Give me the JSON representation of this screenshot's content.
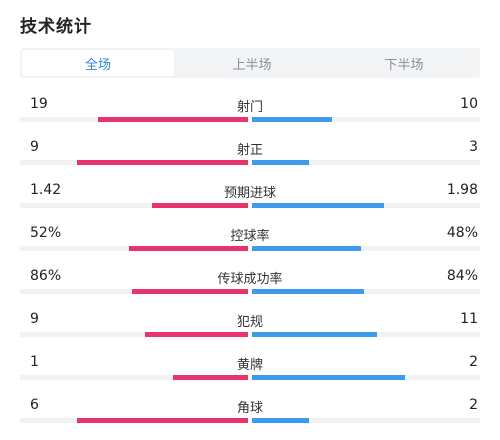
{
  "title": "技术统计",
  "tabs": [
    {
      "label": "全场",
      "active": true
    },
    {
      "label": "上半场",
      "active": false
    },
    {
      "label": "下半场",
      "active": false
    }
  ],
  "colors": {
    "home": "#e8336d",
    "away": "#3d9bec",
    "accent": "#2e86de"
  },
  "stats": [
    {
      "label": "射门",
      "home": "19",
      "away": "10",
      "home_fill": 0.66,
      "away_fill": 0.35
    },
    {
      "label": "射正",
      "home": "9",
      "away": "3",
      "home_fill": 0.75,
      "away_fill": 0.25
    },
    {
      "label": "预期进球",
      "home": "1.42",
      "away": "1.98",
      "home_fill": 0.42,
      "away_fill": 0.58
    },
    {
      "label": "控球率",
      "home": "52%",
      "away": "48%",
      "home_fill": 0.52,
      "away_fill": 0.48
    },
    {
      "label": "传球成功率",
      "home": "86%",
      "away": "84%",
      "home_fill": 0.51,
      "away_fill": 0.49
    },
    {
      "label": "犯规",
      "home": "9",
      "away": "11",
      "home_fill": 0.45,
      "away_fill": 0.55
    },
    {
      "label": "黄牌",
      "home": "1",
      "away": "2",
      "home_fill": 0.33,
      "away_fill": 0.67
    },
    {
      "label": "角球",
      "home": "6",
      "away": "2",
      "home_fill": 0.75,
      "away_fill": 0.25
    }
  ]
}
